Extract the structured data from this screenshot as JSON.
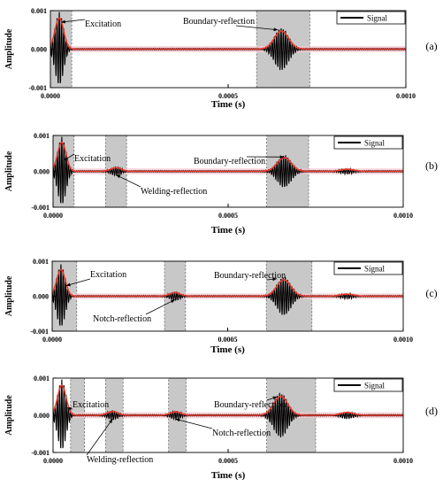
{
  "chart_data": [
    {
      "panel_label": "(a)",
      "type": "line",
      "xlabel": "Time (s)",
      "ylabel": "Amplitude",
      "xlim": [
        0.0,
        0.001
      ],
      "ylim": [
        -0.001,
        0.001
      ],
      "x_ticks": [
        "0.0000",
        "0.0005",
        "0.0010"
      ],
      "y_ticks": [
        "0.001",
        "0.000",
        "-0.001"
      ],
      "legend": "Signal",
      "legend_position": "top-right",
      "shaded_windows": [
        [
          0.0,
          6e-05
        ],
        [
          0.00058,
          0.00073
        ]
      ],
      "wave_packets": [
        {
          "center": 2.5e-05,
          "amplitude": 0.00095,
          "sigma": 1.2e-05
        },
        {
          "center": 0.00065,
          "amplitude": 0.00055,
          "sigma": 2e-05
        }
      ],
      "annotations": [
        {
          "text": "Excitation",
          "target_x": 3e-05,
          "target_y": 0.0007
        },
        {
          "text": "Boundary-reflection",
          "target_x": 0.00064,
          "target_y": 0.0005
        }
      ]
    },
    {
      "panel_label": "(b)",
      "type": "line",
      "xlabel": "Time (s)",
      "ylabel": "Amplitude",
      "xlim": [
        0.0,
        0.001
      ],
      "ylim": [
        -0.001,
        0.001
      ],
      "x_ticks": [
        "0.0000",
        "0.0005",
        "0.0010"
      ],
      "y_ticks": [
        "0.001",
        "0.000",
        "-0.001"
      ],
      "legend": "Signal",
      "legend_position": "top-right",
      "shaded_windows": [
        [
          0.0,
          6e-05
        ],
        [
          0.00015,
          0.00021
        ],
        [
          0.00061,
          0.00073
        ]
      ],
      "wave_packets": [
        {
          "center": 2.5e-05,
          "amplitude": 0.00095,
          "sigma": 1.2e-05
        },
        {
          "center": 0.00018,
          "amplitude": 0.00012,
          "sigma": 1.5e-05
        },
        {
          "center": 0.00066,
          "amplitude": 0.00045,
          "sigma": 2e-05
        },
        {
          "center": 0.00084,
          "amplitude": 7e-05,
          "sigma": 1.8e-05
        }
      ],
      "annotations": [
        {
          "text": "Excitation",
          "target_x": 3e-05,
          "target_y": 0.0003
        },
        {
          "text": "Welding-reflection",
          "target_x": 0.00018,
          "target_y": -0.0001
        },
        {
          "text": "Boundary-reflection",
          "target_x": 0.00066,
          "target_y": 0.0004
        }
      ]
    },
    {
      "panel_label": "(c)",
      "type": "line",
      "xlabel": "Time (s)",
      "ylabel": "Amplitude",
      "xlim": [
        0.0,
        0.001
      ],
      "ylim": [
        -0.001,
        0.001
      ],
      "x_ticks": [
        "0.0000",
        "0.0005",
        "0.0010"
      ],
      "y_ticks": [
        "0.001",
        "0.000",
        "-0.001"
      ],
      "legend": "Signal",
      "legend_position": "top-right",
      "shaded_windows": [
        [
          0.0,
          7e-05
        ],
        [
          0.00032,
          0.00038
        ],
        [
          0.00061,
          0.00074
        ]
      ],
      "wave_packets": [
        {
          "center": 2.5e-05,
          "amplitude": 0.0009,
          "sigma": 1.2e-05
        },
        {
          "center": 0.00035,
          "amplitude": 0.00012,
          "sigma": 1.5e-05
        },
        {
          "center": 0.00066,
          "amplitude": 0.00055,
          "sigma": 2e-05
        },
        {
          "center": 0.00084,
          "amplitude": 7e-05,
          "sigma": 1.8e-05
        }
      ],
      "annotations": [
        {
          "text": "Excitation",
          "target_x": 4e-05,
          "target_y": 0.0003
        },
        {
          "text": "Boundary-reflection",
          "target_x": 0.00064,
          "target_y": 0.0005
        },
        {
          "text": "Notch-reflection",
          "target_x": 0.00035,
          "target_y": -0.0001
        }
      ]
    },
    {
      "panel_label": "(d)",
      "type": "line",
      "xlabel": "Time (s)",
      "ylabel": "Amplitude",
      "xlim": [
        0.0,
        0.001
      ],
      "ylim": [
        -0.001,
        0.001
      ],
      "x_ticks": [
        "0.0000",
        "0.0005",
        "0.0010"
      ],
      "y_ticks": [
        "0.001",
        "0.000",
        "-0.001"
      ],
      "legend": "Signal",
      "legend_position": "top-right",
      "shaded_windows": [
        [
          5e-05,
          9e-05
        ],
        [
          0.00015,
          0.0002
        ],
        [
          0.00033,
          0.00038
        ],
        [
          0.00061,
          0.00075
        ]
      ],
      "wave_packets": [
        {
          "center": 2.5e-05,
          "amplitude": 0.00095,
          "sigma": 1.2e-05
        },
        {
          "center": 0.00017,
          "amplitude": 0.00012,
          "sigma": 1.5e-05
        },
        {
          "center": 0.00035,
          "amplitude": 0.00011,
          "sigma": 1.5e-05
        },
        {
          "center": 0.00065,
          "amplitude": 0.0006,
          "sigma": 2e-05
        },
        {
          "center": 0.00084,
          "amplitude": 9e-05,
          "sigma": 1.8e-05
        }
      ],
      "annotations": [
        {
          "text": "Excitation",
          "target_x": 4e-05,
          "target_y": 0.0002
        },
        {
          "text": "Boundary-reflection",
          "target_x": 0.00064,
          "target_y": 0.0005
        },
        {
          "text": "Notch-reflection",
          "target_x": 0.00035,
          "target_y": -0.0001
        },
        {
          "text": "Welding-reflection",
          "target_x": 0.00017,
          "target_y": -0.0001
        }
      ]
    }
  ],
  "colors": {
    "signal": "#000000",
    "envelope": "#e8392b",
    "band": "#f7c8cf",
    "shade": "#c8c8c8"
  }
}
